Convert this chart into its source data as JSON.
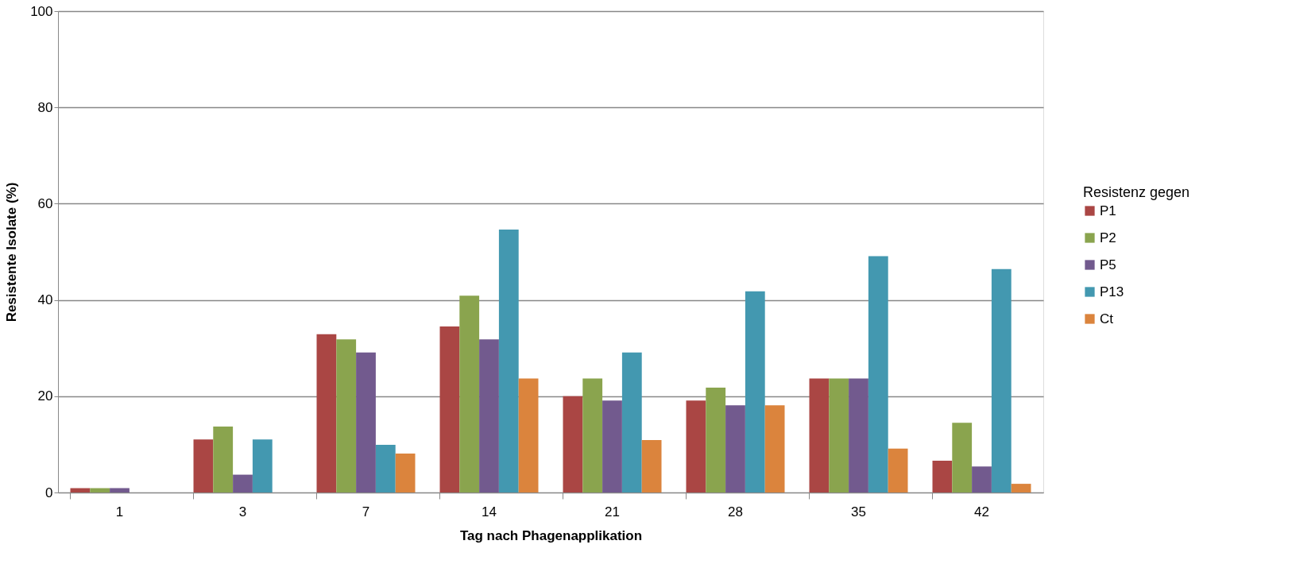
{
  "chart_data": {
    "type": "bar",
    "xlabel": "Tag nach Phagenapplikation",
    "ylabel": "Resistente Isolate (%)",
    "legend_title": "Resistenz gegen",
    "categories": [
      "1",
      "3",
      "7",
      "14",
      "21",
      "28",
      "35",
      "42"
    ],
    "series": [
      {
        "name": "P1",
        "color": "#aa4644",
        "values": [
          0.9,
          11.0,
          32.9,
          34.5,
          20.0,
          19.1,
          23.7,
          6.6
        ]
      },
      {
        "name": "P2",
        "color": "#8aa44e",
        "values": [
          0.9,
          13.7,
          31.8,
          40.9,
          23.7,
          21.8,
          23.7,
          14.5
        ]
      },
      {
        "name": "P5",
        "color": "#725a8e",
        "values": [
          0.9,
          3.7,
          29.1,
          31.8,
          19.1,
          18.1,
          23.7,
          5.4
        ]
      },
      {
        "name": "P13",
        "color": "#4398b0",
        "values": [
          null,
          11.0,
          9.9,
          54.6,
          29.1,
          41.8,
          49.1,
          46.4
        ]
      },
      {
        "name": "Ct",
        "color": "#db843d",
        "values": [
          null,
          null,
          8.1,
          23.7,
          10.9,
          18.1,
          9.1,
          1.8
        ]
      }
    ],
    "ylim": [
      0,
      100
    ],
    "yticks": [
      0,
      20,
      40,
      60,
      80,
      100
    ],
    "grid": "y",
    "legend": "right"
  }
}
